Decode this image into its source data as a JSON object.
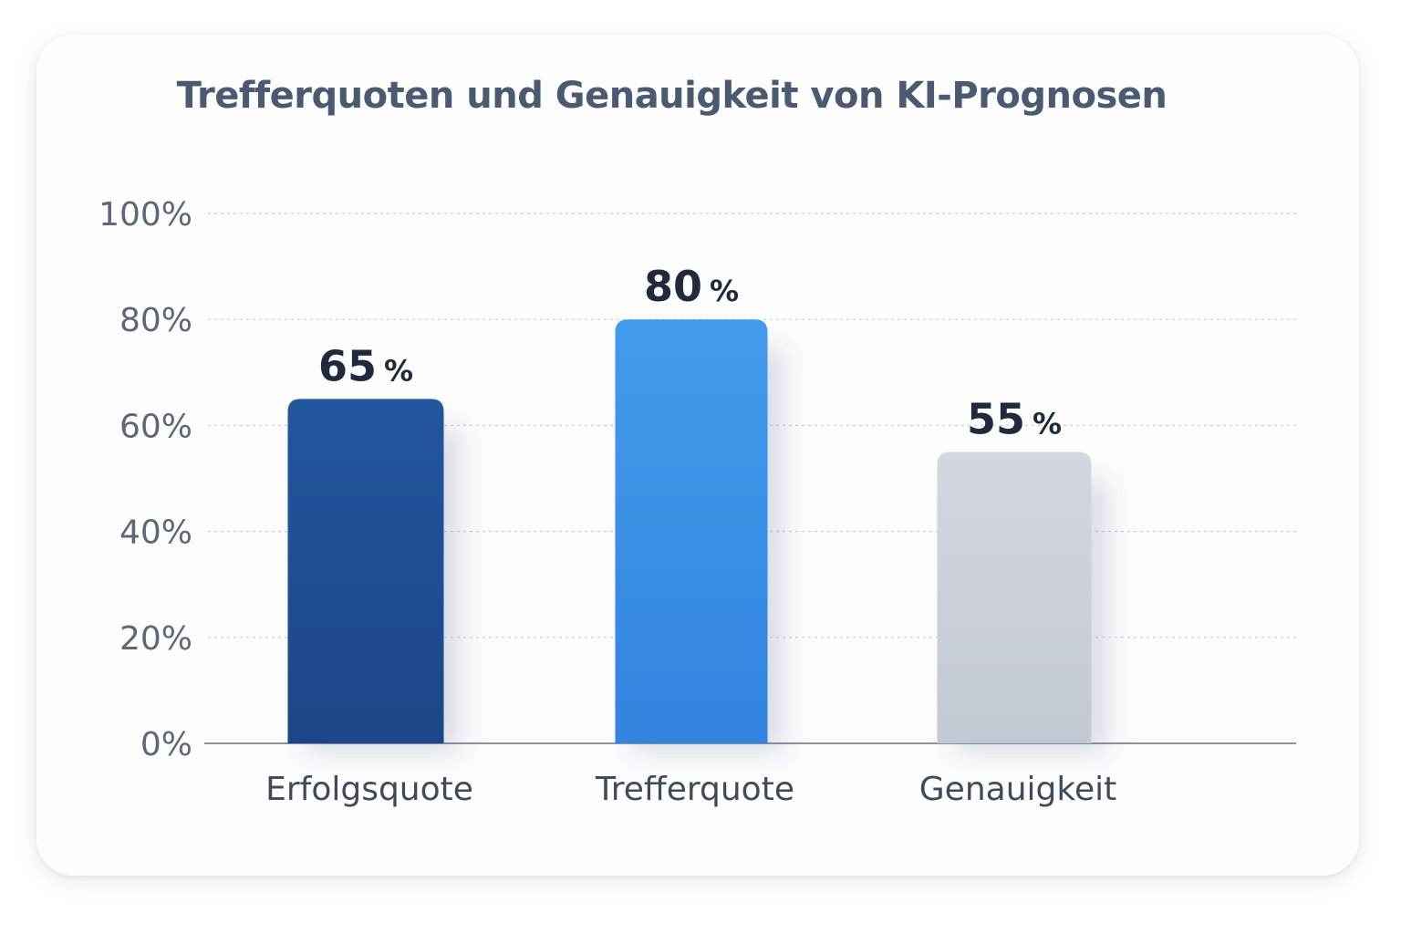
{
  "chart_data": {
    "type": "bar",
    "title": "Trefferquoten und Genauigkeit von KI-Prognosen",
    "categories": [
      "Erfolgsquote",
      "Trefferquote",
      "Genauigkeit"
    ],
    "values": [
      65,
      80,
      55
    ],
    "data_labels": [
      "65",
      "80",
      "55"
    ],
    "data_label_unit": "%",
    "xlabel": "",
    "ylabel": "",
    "ylim": [
      0,
      100
    ],
    "yticks": [
      "0%",
      "20%",
      "40%",
      "60%",
      "80%",
      "100%"
    ],
    "grid": true,
    "legend": "none",
    "colors": [
      "#1f4e92",
      "#3b8ee6",
      "#c8cdd6"
    ]
  }
}
